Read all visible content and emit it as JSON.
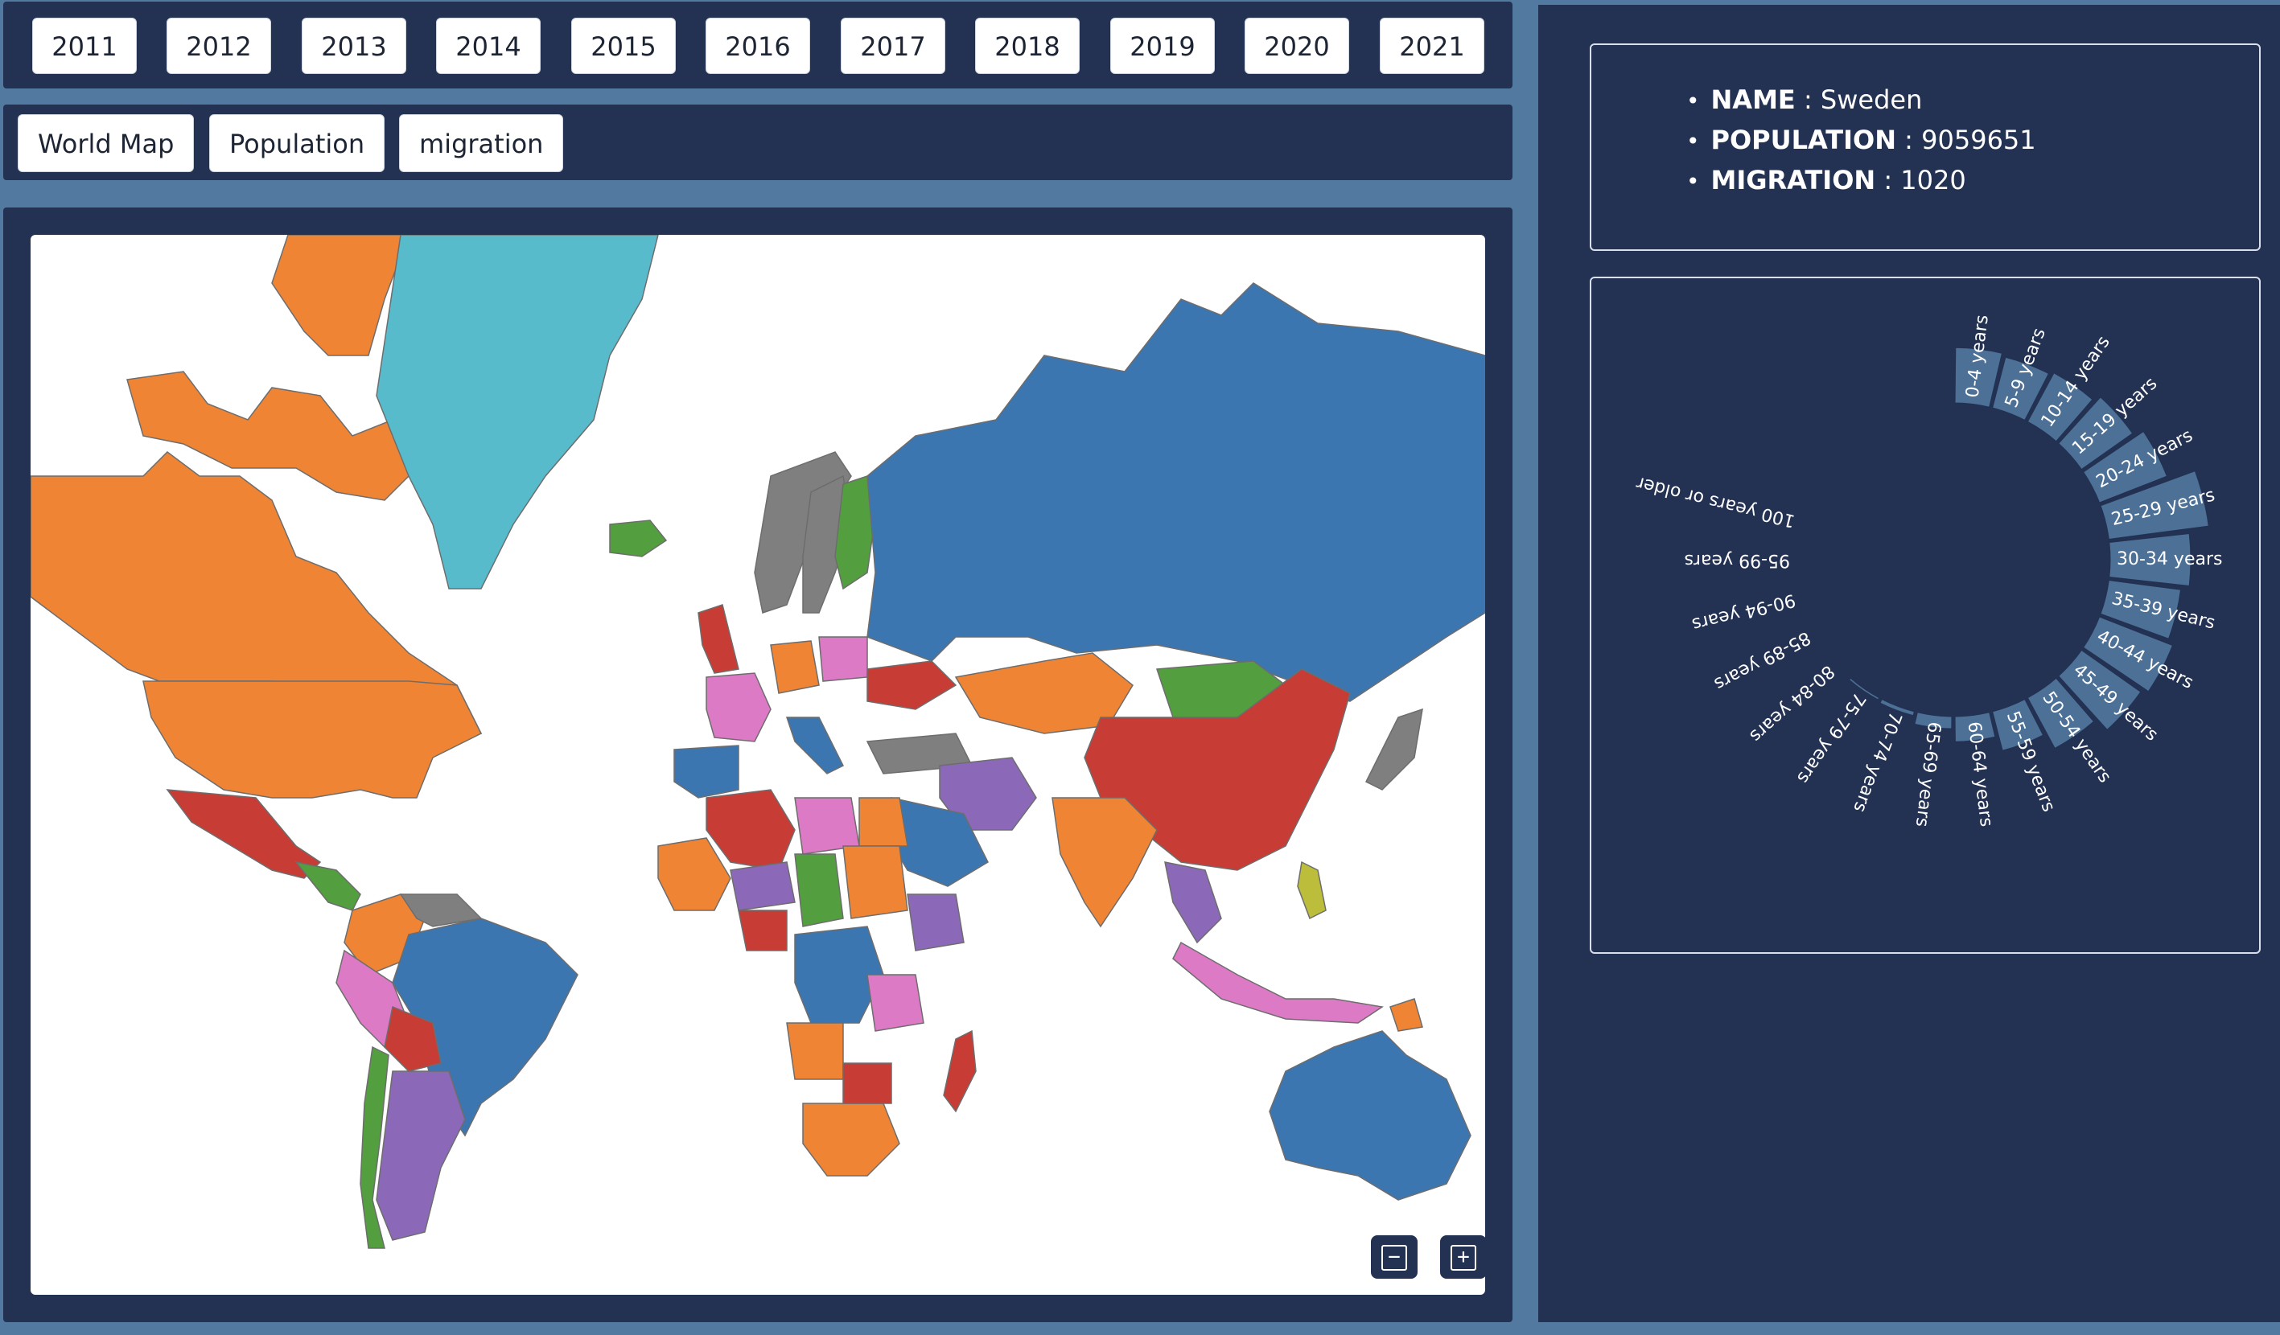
{
  "years": [
    "2011",
    "2012",
    "2013",
    "2014",
    "2015",
    "2016",
    "2017",
    "2018",
    "2019",
    "2020",
    "2021"
  ],
  "views": [
    "World Map",
    "Population",
    "migration"
  ],
  "zoom": {
    "out_label": "−",
    "in_label": "+"
  },
  "info": {
    "name_label": "NAME",
    "name_value": "Sweden",
    "population_label": "POPULATION",
    "population_value": "9059651",
    "migration_label": "MIGRATION",
    "migration_value": "1020"
  },
  "colors": {
    "panel": "#233152",
    "background": "#527aa0",
    "bar": "#4c7096",
    "map_palette": [
      "#3b76b1",
      "#ef8534",
      "#57bbcb",
      "#c73c35",
      "#539e3f",
      "#8c68b8",
      "#7f7f7f",
      "#dc7ac6",
      "#bcbd3a",
      "#8b5046"
    ]
  },
  "chart_data": {
    "type": "bar",
    "subtype": "radial",
    "categories": [
      "0-4 years",
      "5-9 years",
      "10-14 years",
      "15-19 years",
      "20-24 years",
      "25-29 years",
      "30-34 years",
      "35-39 years",
      "40-44 years",
      "45-49 years",
      "50-54 years",
      "55-59 years",
      "60-64 years",
      "65-69 years",
      "70-74 years",
      "75-79 years",
      "80-84 years",
      "85-89 years",
      "90-94 years",
      "95-99 years",
      "100 years or older"
    ],
    "values": [
      55,
      52,
      55,
      62,
      72,
      100,
      80,
      72,
      78,
      72,
      57,
      40,
      25,
      12,
      4,
      2,
      0,
      0,
      0,
      0,
      0
    ],
    "title": "",
    "xlabel": "",
    "ylabel": ""
  }
}
